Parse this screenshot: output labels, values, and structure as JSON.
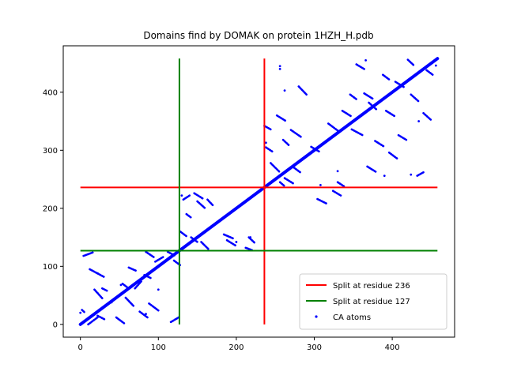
{
  "chart_data": {
    "type": "scatter",
    "title": "Domains find by DOMAK on protein 1HZH_H.pdb",
    "xlabel": "",
    "ylabel": "",
    "xlim": [
      -22,
      480
    ],
    "ylim": [
      -22,
      480
    ],
    "xticks": [
      0,
      100,
      200,
      300,
      400
    ],
    "yticks": [
      0,
      100,
      200,
      300,
      400
    ],
    "grid": false,
    "legend_position": "lower right",
    "legend": [
      {
        "label": "Split at residue 236",
        "color": "#ff0000",
        "kind": "line"
      },
      {
        "label": "Split at residue 127",
        "color": "#008000",
        "kind": "line"
      },
      {
        "label": "CA atoms",
        "color": "#0000ff",
        "kind": "marker"
      }
    ],
    "lines": [
      {
        "name": "Split at residue 236",
        "color": "#ff0000",
        "segments": [
          {
            "x": [
              236,
              236
            ],
            "y": [
              0,
              458
            ]
          },
          {
            "x": [
              0,
              458
            ],
            "y": [
              236,
              236
            ]
          }
        ]
      },
      {
        "name": "Split at residue 127",
        "color": "#008000",
        "segments": [
          {
            "x": [
              127,
              127
            ],
            "y": [
              0,
              458
            ]
          },
          {
            "x": [
              0,
              458
            ],
            "y": [
              127,
              127
            ]
          }
        ]
      }
    ],
    "series": [
      {
        "name": "CA atoms",
        "color": "#0000ff",
        "diagonal": {
          "x": [
            0,
            458
          ],
          "y": [
            0,
            458
          ]
        },
        "contact_segments": [
          {
            "x": [
              2,
              6
            ],
            "y": [
              25,
              20
            ]
          },
          {
            "x": [
              4,
              16
            ],
            "y": [
              118,
              124
            ]
          },
          {
            "x": [
              10,
              22
            ],
            "y": [
              0,
              12
            ]
          },
          {
            "x": [
              12,
              30
            ],
            "y": [
              95,
              82
            ]
          },
          {
            "x": [
              18,
              28
            ],
            "y": [
              60,
              45
            ]
          },
          {
            "x": [
              22,
              32
            ],
            "y": [
              15,
              8
            ]
          },
          {
            "x": [
              28,
              34
            ],
            "y": [
              62,
              58
            ]
          },
          {
            "x": [
              32,
              48
            ],
            "y": [
              32,
              48
            ]
          },
          {
            "x": [
              46,
              56
            ],
            "y": [
              12,
              2
            ]
          },
          {
            "x": [
              54,
              60
            ],
            "y": [
              70,
              64
            ]
          },
          {
            "x": [
              62,
              72
            ],
            "y": [
              98,
              92
            ]
          },
          {
            "x": [
              58,
              68
            ],
            "y": [
              46,
              32
            ]
          },
          {
            "x": [
              70,
              78
            ],
            "y": [
              62,
              74
            ]
          },
          {
            "x": [
              76,
              86
            ],
            "y": [
              22,
              12
            ]
          },
          {
            "x": [
              84,
              94
            ],
            "y": [
              125,
              116
            ]
          },
          {
            "x": [
              82,
              90
            ],
            "y": [
              85,
              80
            ]
          },
          {
            "x": [
              88,
              100
            ],
            "y": [
              36,
              24
            ]
          },
          {
            "x": [
              96,
              106
            ],
            "y": [
              108,
              116
            ]
          },
          {
            "x": [
              112,
              122
            ],
            "y": [
              125,
              118
            ]
          },
          {
            "x": [
              116,
              126
            ],
            "y": [
              4,
              12
            ]
          },
          {
            "x": [
              120,
              128
            ],
            "y": [
              110,
              102
            ]
          },
          {
            "x": [
              128,
              136
            ],
            "y": [
              160,
              152
            ]
          },
          {
            "x": [
              132,
              140
            ],
            "y": [
              215,
              222
            ]
          },
          {
            "x": [
              136,
              142
            ],
            "y": [
              190,
              184
            ]
          },
          {
            "x": [
              142,
              150
            ],
            "y": [
              150,
              142
            ]
          },
          {
            "x": [
              146,
              158
            ],
            "y": [
              226,
              216
            ]
          },
          {
            "x": [
              150,
              160
            ],
            "y": [
              212,
              200
            ]
          },
          {
            "x": [
              155,
              164
            ],
            "y": [
              142,
              130
            ]
          },
          {
            "x": [
              163,
              170
            ],
            "y": [
              215,
              205
            ]
          },
          {
            "x": [
              184,
              196
            ],
            "y": [
              155,
              148
            ]
          },
          {
            "x": [
              188,
              200
            ],
            "y": [
              145,
              135
            ]
          },
          {
            "x": [
              212,
              220
            ],
            "y": [
              132,
              128
            ]
          },
          {
            "x": [
              216,
              224
            ],
            "y": [
              150,
              140
            ]
          },
          {
            "x": [
              236,
              244
            ],
            "y": [
              342,
              336
            ]
          },
          {
            "x": [
              238,
              246
            ],
            "y": [
              305,
              298
            ]
          },
          {
            "x": [
              244,
              256
            ],
            "y": [
              278,
              262
            ]
          },
          {
            "x": [
              252,
              264
            ],
            "y": [
              360,
              350
            ]
          },
          {
            "x": [
              256,
              262
            ],
            "y": [
              245,
              238
            ]
          },
          {
            "x": [
              260,
              268
            ],
            "y": [
              318,
              308
            ]
          },
          {
            "x": [
              262,
              274
            ],
            "y": [
              252,
              242
            ]
          },
          {
            "x": [
              270,
              284
            ],
            "y": [
              335,
              322
            ]
          },
          {
            "x": [
              274,
              282
            ],
            "y": [
              270,
              262
            ]
          },
          {
            "x": [
              280,
              290
            ],
            "y": [
              410,
              396
            ]
          },
          {
            "x": [
              296,
              306
            ],
            "y": [
              306,
              298
            ]
          },
          {
            "x": [
              304,
              316
            ],
            "y": [
              216,
              208
            ]
          },
          {
            "x": [
              318,
              330
            ],
            "y": [
              346,
              334
            ]
          },
          {
            "x": [
              324,
              334
            ],
            "y": [
              230,
              222
            ]
          },
          {
            "x": [
              330,
              338
            ],
            "y": [
              245,
              238
            ]
          },
          {
            "x": [
              336,
              348
            ],
            "y": [
              368,
              358
            ]
          },
          {
            "x": [
              346,
              354
            ],
            "y": [
              396,
              388
            ]
          },
          {
            "x": [
              348,
              362
            ],
            "y": [
              336,
              326
            ]
          },
          {
            "x": [
              354,
              364
            ],
            "y": [
              448,
              440
            ]
          },
          {
            "x": [
              364,
              376
            ],
            "y": [
              398,
              388
            ]
          },
          {
            "x": [
              368,
              380
            ],
            "y": [
              272,
              262
            ]
          },
          {
            "x": [
              370,
              380
            ],
            "y": [
              382,
              370
            ]
          },
          {
            "x": [
              378,
              390
            ],
            "y": [
              316,
              306
            ]
          },
          {
            "x": [
              388,
              396
            ],
            "y": [
              430,
              422
            ]
          },
          {
            "x": [
              392,
              404
            ],
            "y": [
              368,
              358
            ]
          },
          {
            "x": [
              396,
              406
            ],
            "y": [
              296,
              286
            ]
          },
          {
            "x": [
              404,
              416
            ],
            "y": [
              418,
              408
            ]
          },
          {
            "x": [
              408,
              418
            ],
            "y": [
              326,
              318
            ]
          },
          {
            "x": [
              420,
              428
            ],
            "y": [
              456,
              446
            ]
          },
          {
            "x": [
              424,
              434
            ],
            "y": [
              396,
              384
            ]
          },
          {
            "x": [
              432,
              440
            ],
            "y": [
              256,
              262
            ]
          },
          {
            "x": [
              440,
              450
            ],
            "y": [
              364,
              352
            ]
          },
          {
            "x": [
              444,
              452
            ],
            "y": [
              438,
              430
            ]
          }
        ],
        "points": [
          {
            "x": 0,
            "y": 20
          },
          {
            "x": 22,
            "y": 88
          },
          {
            "x": 40,
            "y": 38
          },
          {
            "x": 52,
            "y": 68
          },
          {
            "x": 84,
            "y": 18
          },
          {
            "x": 100,
            "y": 60
          },
          {
            "x": 130,
            "y": 222
          },
          {
            "x": 200,
            "y": 142
          },
          {
            "x": 218,
            "y": 150
          },
          {
            "x": 238,
            "y": 313
          },
          {
            "x": 256,
            "y": 445
          },
          {
            "x": 256,
            "y": 440
          },
          {
            "x": 262,
            "y": 403
          },
          {
            "x": 308,
            "y": 240
          },
          {
            "x": 330,
            "y": 264
          },
          {
            "x": 366,
            "y": 455
          },
          {
            "x": 390,
            "y": 256
          },
          {
            "x": 424,
            "y": 258
          },
          {
            "x": 434,
            "y": 350
          },
          {
            "x": 456,
            "y": 446
          }
        ]
      }
    ]
  }
}
